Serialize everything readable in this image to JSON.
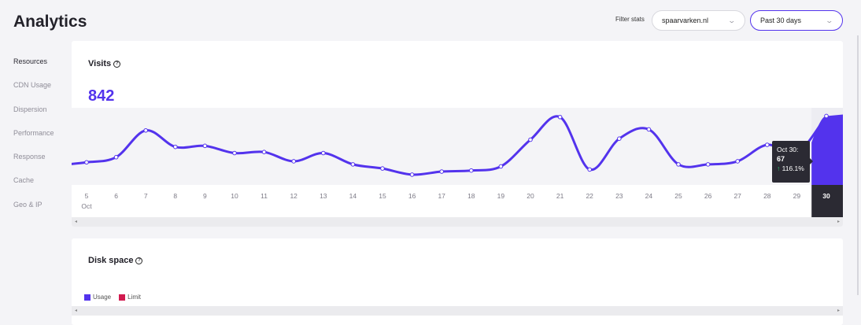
{
  "header": {
    "title": "Analytics",
    "filter_label": "Filter stats",
    "site_select": "spaarvarken.nl",
    "period_select": "Past 30 days"
  },
  "sidebar": {
    "items": [
      {
        "label": "Resources"
      },
      {
        "label": "CDN Usage"
      },
      {
        "label": "Dispersion"
      },
      {
        "label": "Performance"
      },
      {
        "label": "Response"
      },
      {
        "label": "Cache"
      },
      {
        "label": "Geo & IP"
      }
    ]
  },
  "visits": {
    "title": "Visits",
    "total": "842",
    "tooltip": {
      "date": "Oct 30:",
      "value": "67",
      "change": "116.1%"
    }
  },
  "disk": {
    "title": "Disk space",
    "legend": [
      {
        "label": "Usage",
        "color": "#5333ed"
      },
      {
        "label": "Limit",
        "color": "#d11a4f"
      }
    ]
  },
  "colors": {
    "accent": "#5333ed",
    "dark": "#2b2a33"
  },
  "chart_data": {
    "type": "line",
    "x": [
      "5",
      "6",
      "7",
      "8",
      "9",
      "10",
      "11",
      "12",
      "13",
      "14",
      "15",
      "16",
      "17",
      "18",
      "19",
      "20",
      "21",
      "22",
      "23",
      "24",
      "25",
      "26",
      "27",
      "28",
      "29",
      "30"
    ],
    "x_sublabel": "Oct",
    "series": [
      {
        "values": [
          22,
          27,
          53,
          37,
          38,
          31,
          32,
          23,
          31,
          20,
          16,
          10,
          13,
          14,
          18,
          44,
          66,
          15,
          45,
          54,
          20,
          20,
          23,
          39,
          31,
          67
        ]
      }
    ],
    "ylim": [
      0,
      75
    ],
    "highlight_x": "30"
  }
}
